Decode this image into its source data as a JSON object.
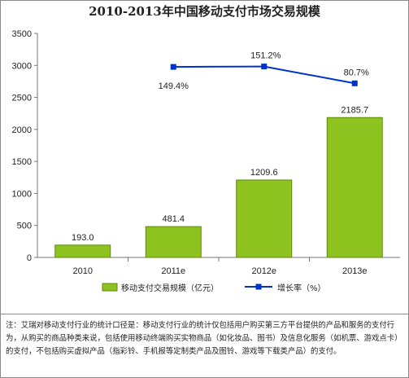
{
  "chart_data": {
    "type": "bar",
    "title": "2010-2013年中国移动支付市场交易规模",
    "categories": [
      "2010",
      "2011e",
      "2012e",
      "2013e"
    ],
    "ylim": [
      0,
      3500
    ],
    "yticks": [
      "0",
      "500",
      "1000",
      "1500",
      "2000",
      "2500",
      "3000",
      "3500"
    ],
    "grid": false,
    "legend_position": "bottom",
    "series": [
      {
        "name": "移动支付交易规模（亿元）",
        "type": "bar",
        "color": "#8DC21F",
        "values": [
          193.0,
          481.4,
          1209.6,
          2185.7
        ],
        "labels": [
          "193.0",
          "481.4",
          "1209.6",
          "2185.7"
        ]
      },
      {
        "name": "增长率（%）",
        "type": "line",
        "color": "#0033CC",
        "values": [
          null,
          149.4,
          151.2,
          80.7
        ],
        "labels": [
          "",
          "149.4%",
          "151.2%",
          "80.7%"
        ]
      }
    ]
  },
  "note": "注：艾瑞对移动支付行业的统计口径是：移动支付行业的统计仅包括用户购买第三方平台提供的产品和服务的支付行为，从购买的商品种类来说，包括使用移动终端购买实物商品（如化妆品、图书）及信息化服务（如机票、游戏点卡）的支付，不包括购买虚拟产品（指彩铃、手机报等定制类产品及图铃、游戏等下载类产品）的支付。"
}
